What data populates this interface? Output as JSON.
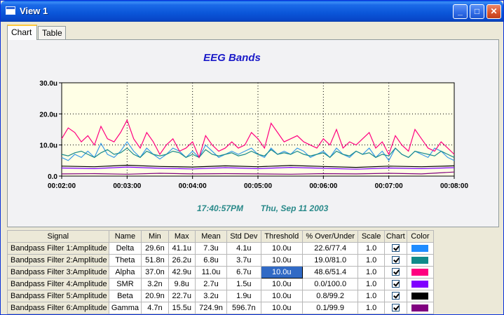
{
  "window": {
    "title": "View 1"
  },
  "title_buttons": {
    "minimize": "_",
    "maximize": "□",
    "close": "✕"
  },
  "tabs": [
    {
      "label": "Chart"
    },
    {
      "label": "Table"
    }
  ],
  "chart": {
    "title": "EEG Bands",
    "footer_time": "17:40:57PM",
    "footer_date": "Thu, Sep 11 2003",
    "colors": {
      "title": "#1a1ac8",
      "footer": "#2a8a8a",
      "plot_bg": "#ffffe6"
    }
  },
  "chart_data": {
    "type": "line",
    "title": "EEG Bands",
    "xlabel": "",
    "ylabel": "",
    "x_ticks": [
      "00:02:00",
      "00:03:00",
      "00:04:00",
      "00:05:00",
      "00:06:00",
      "00:07:00",
      "00:08:00"
    ],
    "y_ticks": [
      "0.0",
      "10.0u",
      "20.0u",
      "30.0u"
    ],
    "xlim": [
      120,
      480
    ],
    "ylim": [
      0,
      30
    ],
    "grid": true,
    "series": [
      {
        "name": "Alpha",
        "color": "#ff0080",
        "x": [
          120,
          126,
          132,
          138,
          144,
          150,
          156,
          162,
          168,
          174,
          180,
          186,
          192,
          198,
          204,
          210,
          216,
          222,
          228,
          234,
          240,
          246,
          252,
          258,
          264,
          270,
          276,
          282,
          288,
          294,
          300,
          306,
          312,
          318,
          324,
          330,
          336,
          342,
          348,
          354,
          360,
          366,
          372,
          378,
          384,
          390,
          396,
          402,
          408,
          414,
          420,
          426,
          432,
          438,
          444,
          450,
          456,
          462,
          468,
          474,
          480
        ],
        "y": [
          12,
          15.5,
          14,
          11,
          13,
          10,
          16,
          12,
          11,
          14,
          18,
          12,
          9,
          14,
          11,
          7,
          10,
          12,
          8,
          9,
          11,
          6,
          13,
          10,
          8,
          9,
          11,
          9,
          10,
          14,
          12,
          9,
          17,
          14,
          11,
          12,
          13,
          11,
          10,
          9,
          12,
          10,
          15,
          9,
          11,
          10,
          12,
          14,
          9,
          11,
          7,
          13,
          10,
          8,
          15,
          12,
          9,
          8,
          11,
          9,
          7
        ]
      },
      {
        "name": "Theta",
        "color": "#1a8a8a",
        "x": [
          120,
          126,
          132,
          138,
          144,
          150,
          156,
          162,
          168,
          174,
          180,
          186,
          192,
          198,
          204,
          210,
          216,
          222,
          228,
          234,
          240,
          246,
          252,
          258,
          264,
          270,
          276,
          282,
          288,
          294,
          300,
          306,
          312,
          318,
          324,
          330,
          336,
          342,
          348,
          354,
          360,
          366,
          372,
          378,
          384,
          390,
          396,
          402,
          408,
          414,
          420,
          426,
          432,
          438,
          444,
          450,
          456,
          462,
          468,
          474,
          480
        ],
        "y": [
          7,
          6.5,
          7.5,
          8,
          7,
          6,
          7.5,
          8.5,
          7,
          7.5,
          9,
          7,
          6,
          8,
          7,
          6.5,
          7,
          8,
          7.5,
          6,
          7,
          6,
          8.5,
          7,
          6.5,
          7,
          7.5,
          6.5,
          7,
          8,
          7,
          6.5,
          8.5,
          7,
          7.5,
          7,
          8,
          7,
          6.5,
          7,
          7.5,
          6,
          8,
          7,
          6.5,
          8,
          7,
          7.5,
          6,
          7,
          6.5,
          9,
          7,
          6,
          8,
          7.5,
          7,
          6.5,
          8,
          7,
          6
        ]
      },
      {
        "name": "Delta",
        "color": "#3a9ae8",
        "x": [
          120,
          126,
          132,
          138,
          144,
          150,
          156,
          162,
          168,
          174,
          180,
          186,
          192,
          198,
          204,
          210,
          216,
          222,
          228,
          234,
          240,
          246,
          252,
          258,
          264,
          270,
          276,
          282,
          288,
          294,
          300,
          306,
          312,
          318,
          324,
          330,
          336,
          342,
          348,
          354,
          360,
          366,
          372,
          378,
          384,
          390,
          396,
          402,
          408,
          414,
          420,
          426,
          432,
          438,
          444,
          450,
          456,
          462,
          468,
          474,
          480
        ],
        "y": [
          6,
          5,
          7,
          6,
          8,
          6,
          10.5,
          7,
          6,
          8,
          11,
          8,
          6,
          9,
          7,
          5.5,
          7,
          9,
          8,
          6,
          8,
          6,
          10,
          8,
          6,
          7,
          8,
          7,
          8,
          9,
          7,
          6,
          9,
          7,
          8,
          7,
          9,
          8,
          6,
          7,
          8,
          6,
          9,
          7,
          6,
          8,
          7,
          9,
          6,
          8,
          5,
          9,
          7,
          6,
          8,
          7,
          6,
          9,
          8,
          6,
          5
        ]
      },
      {
        "name": "Beta",
        "color": "#000000",
        "x": [
          120,
          150,
          180,
          210,
          240,
          270,
          300,
          330,
          360,
          390,
          420,
          450,
          480
        ],
        "y": [
          3.2,
          3.0,
          3.5,
          3.1,
          2.9,
          3.3,
          3.0,
          3.4,
          3.1,
          2.8,
          3.2,
          3.0,
          3.3
        ]
      },
      {
        "name": "SMR",
        "color": "#8000ff",
        "x": [
          120,
          150,
          180,
          210,
          240,
          270,
          300,
          330,
          360,
          390,
          420,
          450,
          480
        ],
        "y": [
          2.6,
          2.4,
          2.9,
          2.5,
          2.3,
          2.7,
          2.4,
          2.8,
          2.5,
          2.2,
          2.6,
          2.4,
          2.7
        ]
      },
      {
        "name": "Gamma",
        "color": "#800080",
        "x": [
          120,
          150,
          180,
          210,
          240,
          270,
          300,
          330,
          360,
          390,
          420,
          450,
          480
        ],
        "y": [
          0.7,
          0.8,
          0.6,
          0.9,
          0.7,
          0.8,
          0.7,
          0.6,
          0.8,
          0.7,
          0.9,
          0.7,
          1.3
        ]
      }
    ]
  },
  "table": {
    "headers": [
      "Signal",
      "Name",
      "Min",
      "Max",
      "Mean",
      "Std Dev",
      "Threshold",
      "% Over/Under",
      "Scale",
      "Chart",
      "Color"
    ],
    "rows": [
      {
        "signal": "Bandpass Filter 1:Amplitude",
        "name": "Delta",
        "min": "29.6n",
        "max": "41.1u",
        "mean": "7.3u",
        "std": "4.1u",
        "threshold": "10.0u",
        "over": "22.6/77.4",
        "scale": "1.0",
        "chart": true,
        "color": "#1e8cff"
      },
      {
        "signal": "Bandpass Filter 2:Amplitude",
        "name": "Theta",
        "min": "51.8n",
        "max": "26.2u",
        "mean": "6.8u",
        "std": "3.7u",
        "threshold": "10.0u",
        "over": "19.0/81.0",
        "scale": "1.0",
        "chart": true,
        "color": "#108a8a"
      },
      {
        "signal": "Bandpass Filter 3:Amplitude",
        "name": "Alpha",
        "min": "37.0n",
        "max": "42.9u",
        "mean": "11.0u",
        "std": "6.7u",
        "threshold": "10.0u",
        "over": "48.6/51.4",
        "scale": "1.0",
        "chart": true,
        "color": "#ff0080"
      },
      {
        "signal": "Bandpass Filter 4:Amplitude",
        "name": "SMR",
        "min": "3.2n",
        "max": "9.8u",
        "mean": "2.7u",
        "std": "1.5u",
        "threshold": "10.0u",
        "over": "0.0/100.0",
        "scale": "1.0",
        "chart": true,
        "color": "#8000ff"
      },
      {
        "signal": "Bandpass Filter 5:Amplitude",
        "name": "Beta",
        "min": "20.9n",
        "max": "22.7u",
        "mean": "3.2u",
        "std": "1.9u",
        "threshold": "10.0u",
        "over": "0.8/99.2",
        "scale": "1.0",
        "chart": true,
        "color": "#000000"
      },
      {
        "signal": "Bandpass Filter 6:Amplitude",
        "name": "Gamma",
        "min": "4.7n",
        "max": "15.5u",
        "mean": "724.9n",
        "std": "596.7n",
        "threshold": "10.0u",
        "over": "0.1/99.9",
        "scale": "1.0",
        "chart": true,
        "color": "#800080"
      }
    ],
    "selected_threshold_row": 2
  }
}
